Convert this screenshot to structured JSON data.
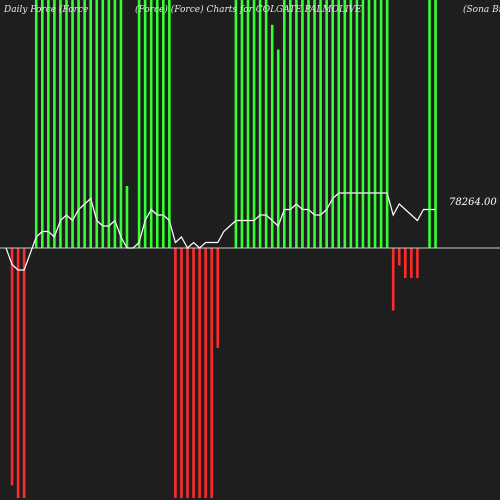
{
  "header": {
    "left": "Daily Force (Force",
    "center": "(Force) (Force) Charts for COLGATE PALMOLIVE",
    "right": "(Sona Bitthi"
  },
  "price_label": "78264.00",
  "colors": {
    "background": "#1e1e1e",
    "positive_bar": "#33ff33",
    "negative_bar": "#ff2a2a",
    "line": "#ffffff",
    "baseline": "#cccccc"
  },
  "chart_data": {
    "type": "bar",
    "title": "",
    "xlabel": "",
    "ylabel": "",
    "ylim": [
      -100,
      100
    ],
    "grid": false,
    "series": [
      {
        "values": [
          0,
          -95,
          -100,
          -100,
          0,
          0,
          0,
          0,
          0,
          0,
          0,
          0,
          0,
          0,
          0,
          0,
          0,
          0,
          0,
          0,
          0,
          0,
          0,
          0,
          0,
          0,
          0,
          0,
          -100,
          -100,
          -100,
          -100,
          -100,
          -100,
          -100,
          -40,
          0,
          0,
          0,
          0,
          0,
          0,
          0,
          0,
          0,
          0,
          0,
          0,
          0,
          0,
          0,
          0,
          0,
          0,
          0,
          0,
          0,
          0,
          0,
          0,
          0,
          0,
          0,
          0,
          -25,
          -7,
          -12,
          -12,
          -12,
          0,
          0,
          0
        ]
      },
      {
        "values": [
          0,
          0,
          0,
          0,
          0,
          100,
          100,
          100,
          100,
          100,
          100,
          100,
          100,
          100,
          100,
          100,
          100,
          100,
          100,
          100,
          25,
          0,
          100,
          100,
          100,
          100,
          100,
          100,
          0,
          0,
          0,
          0,
          0,
          0,
          0,
          0,
          0,
          0,
          100,
          100,
          100,
          100,
          100,
          100,
          90,
          80,
          100,
          100,
          100,
          100,
          100,
          100,
          100,
          100,
          100,
          100,
          100,
          100,
          100,
          100,
          100,
          100,
          100,
          100,
          0,
          0,
          0,
          0,
          0,
          0,
          100,
          100
        ]
      },
      {
        "values": [
          0,
          -3,
          -4,
          -4,
          -1,
          2,
          3,
          3,
          2,
          5,
          6,
          5,
          7,
          8,
          9,
          5,
          4,
          4,
          5,
          2,
          0,
          0,
          1,
          5,
          7,
          6,
          6,
          5,
          1,
          2,
          0,
          1,
          0,
          1,
          1,
          1,
          3,
          4,
          5,
          5,
          5,
          5,
          6,
          6,
          5,
          4,
          7,
          7,
          8,
          7,
          7,
          6,
          6,
          7,
          9,
          10,
          10,
          10,
          10,
          10,
          10,
          10,
          10,
          10,
          6,
          8,
          7,
          6,
          5,
          7,
          7,
          7
        ]
      }
    ]
  }
}
